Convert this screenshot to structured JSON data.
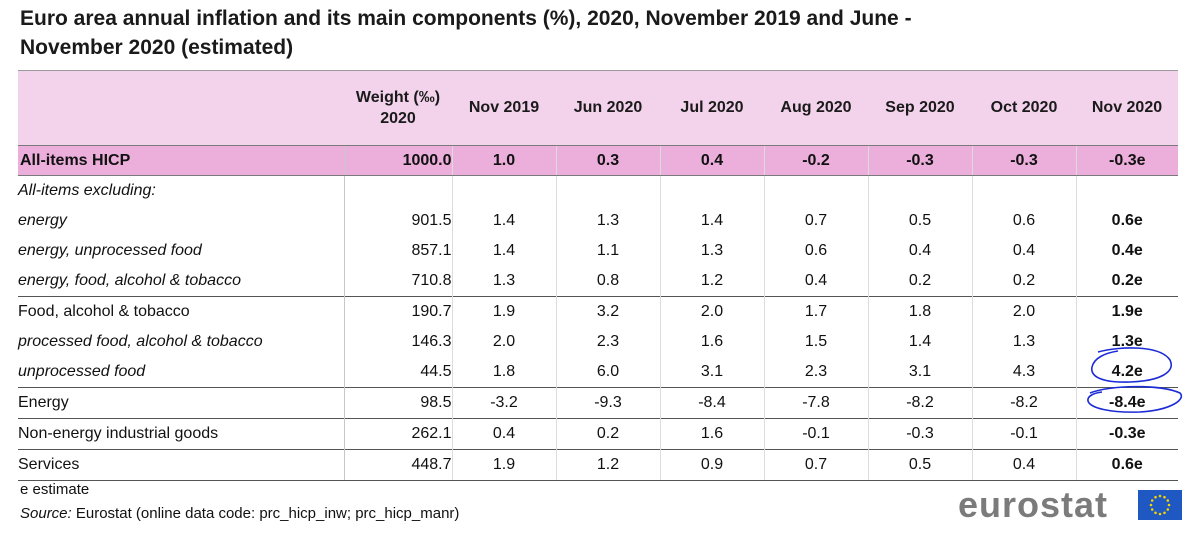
{
  "title": "Euro area annual inflation and its main components (%), 2020, November 2019 and June - November 2020 (estimated)",
  "chart_data": {
    "type": "table",
    "columns": [
      "Weight (‰) 2020",
      "Nov 2019",
      "Jun 2020",
      "Jul 2020",
      "Aug 2020",
      "Sep 2020",
      "Oct 2020",
      "Nov 2020"
    ],
    "header": {
      "weight": "Weight (‰)",
      "weight_year": "2020",
      "periods": [
        "Nov 2019",
        "Jun 2020",
        "Jul 2020",
        "Aug 2020",
        "Sep 2020",
        "Oct 2020",
        "Nov 2020"
      ]
    },
    "rows": [
      {
        "label": "All-items HICP",
        "weight": "1000.0",
        "values": [
          "1.0",
          "0.3",
          "0.4",
          "-0.2",
          "-0.3",
          "-0.3",
          "-0.3e"
        ]
      },
      {
        "label": "All-items excluding:",
        "weight": "",
        "values": [
          "",
          "",
          "",
          "",
          "",
          "",
          ""
        ]
      },
      {
        "label": "energy",
        "weight": "901.5",
        "values": [
          "1.4",
          "1.3",
          "1.4",
          "0.7",
          "0.5",
          "0.6",
          "0.6e"
        ]
      },
      {
        "label": "energy, unprocessed food",
        "weight": "857.1",
        "values": [
          "1.4",
          "1.1",
          "1.3",
          "0.6",
          "0.4",
          "0.4",
          "0.4e"
        ]
      },
      {
        "label": "energy, food, alcohol & tobacco",
        "weight": "710.8",
        "values": [
          "1.3",
          "0.8",
          "1.2",
          "0.4",
          "0.2",
          "0.2",
          "0.2e"
        ]
      },
      {
        "label": "Food, alcohol & tobacco",
        "weight": "190.7",
        "values": [
          "1.9",
          "3.2",
          "2.0",
          "1.7",
          "1.8",
          "2.0",
          "1.9e"
        ]
      },
      {
        "label": "processed food, alcohol & tobacco",
        "weight": "146.3",
        "values": [
          "2.0",
          "2.3",
          "1.6",
          "1.5",
          "1.4",
          "1.3",
          "1.3e"
        ]
      },
      {
        "label": "unprocessed food",
        "weight": "44.5",
        "values": [
          "1.8",
          "6.0",
          "3.1",
          "2.3",
          "3.1",
          "4.3",
          "4.2e"
        ]
      },
      {
        "label": "Energy",
        "weight": "98.5",
        "values": [
          "-3.2",
          "-9.3",
          "-8.4",
          "-7.8",
          "-8.2",
          "-8.2",
          "-8.4e"
        ]
      },
      {
        "label": "Non-energy industrial goods",
        "weight": "262.1",
        "values": [
          "0.4",
          "0.2",
          "1.6",
          "-0.1",
          "-0.3",
          "-0.1",
          "-0.3e"
        ]
      },
      {
        "label": "Services",
        "weight": "448.7",
        "values": [
          "1.9",
          "1.2",
          "0.9",
          "0.7",
          "0.5",
          "0.4",
          "0.6e"
        ]
      }
    ],
    "highlighted_cells": [
      "unprocessed food / Nov 2020",
      "Energy / Nov 2020"
    ]
  },
  "footer": {
    "estimate_note": "e estimate",
    "source_label": "Source:",
    "source_text": "Eurostat (online data code: prc_hicp_inw; prc_hicp_manr)"
  },
  "logo": {
    "text": "eurostat",
    "flag_color": "#1f57c3",
    "star_color": "#f5d300"
  },
  "colors": {
    "header_bg": "#f3d3ec",
    "all_items_bg": "#ecaedb",
    "annotation": "#1c2bd6"
  }
}
